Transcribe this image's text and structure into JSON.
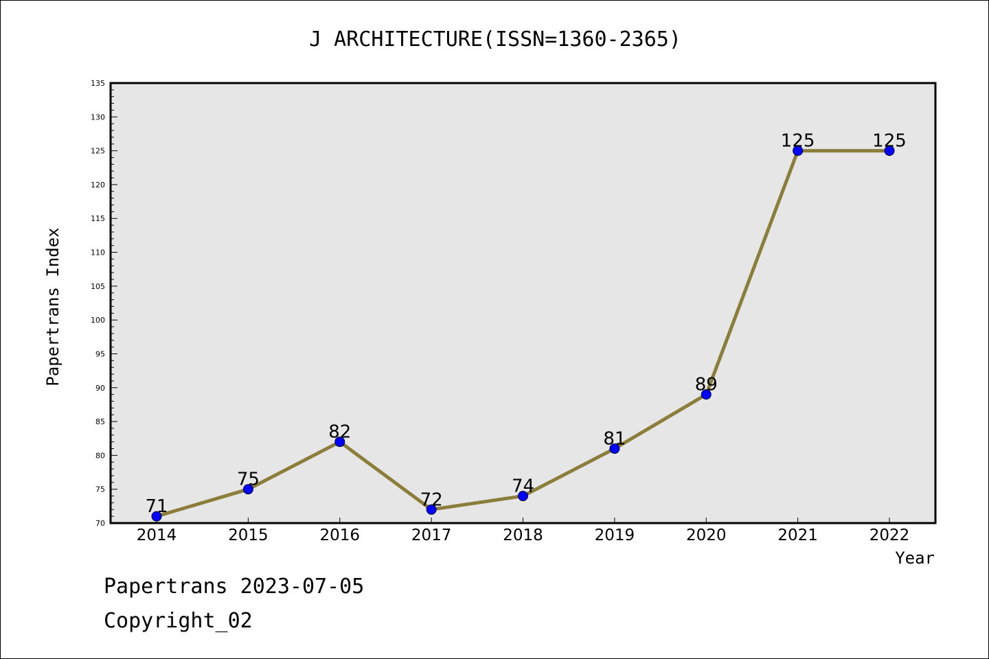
{
  "chart_data": {
    "type": "line",
    "title": "J ARCHITECTURE(ISSN=1360-2365)",
    "xlabel": "Year",
    "ylabel": "Papertrans Index",
    "categories": [
      "2014",
      "2015",
      "2016",
      "2017",
      "2018",
      "2019",
      "2020",
      "2021",
      "2022"
    ],
    "series": [
      {
        "values": [
          71,
          75,
          82,
          72,
          74,
          81,
          89,
          125,
          125
        ]
      }
    ],
    "data_labels": [
      "71",
      "75",
      "82",
      "72",
      "74",
      "81",
      "89",
      "125",
      "125"
    ],
    "ylim": [
      70,
      135
    ],
    "yticks": [
      70,
      75,
      80,
      85,
      90,
      95,
      100,
      105,
      110,
      115,
      120,
      125,
      130,
      135
    ],
    "grid": false,
    "colors": {
      "plot_background": "#e6e6e6",
      "line": "#8b7d3a",
      "marker": "#0000ff"
    }
  },
  "footer": {
    "line1": "Papertrans 2023-07-05",
    "line2": "Copyright_02"
  }
}
